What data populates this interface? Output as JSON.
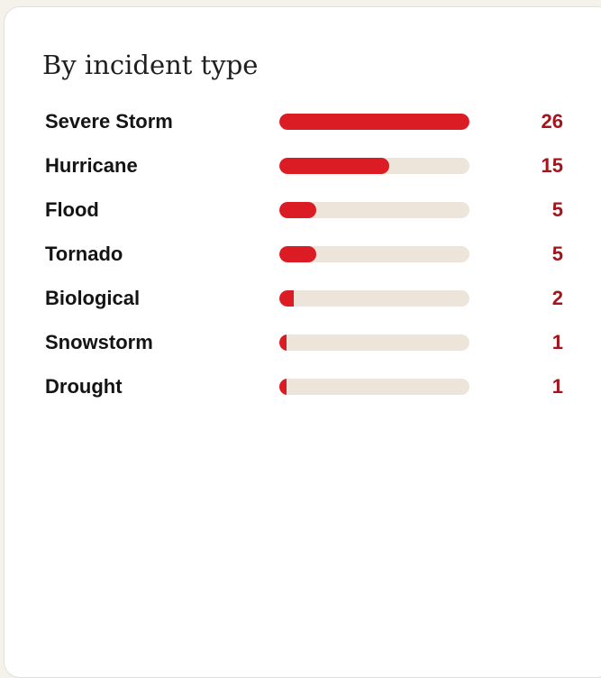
{
  "panel": {
    "title": "By incident type"
  },
  "colors": {
    "bar_fill": "#dc1c24",
    "bar_track": "#ede4da",
    "value_text": "#a3151d",
    "label_text": "#141414"
  },
  "chart_data": {
    "type": "bar",
    "orientation": "horizontal",
    "title": "By incident type",
    "categories": [
      "Severe Storm",
      "Hurricane",
      "Flood",
      "Tornado",
      "Biological",
      "Snowstorm",
      "Drought"
    ],
    "values": [
      26,
      15,
      5,
      5,
      2,
      1,
      1
    ],
    "xlim": [
      0,
      26
    ],
    "grid": false,
    "legend": "none"
  }
}
